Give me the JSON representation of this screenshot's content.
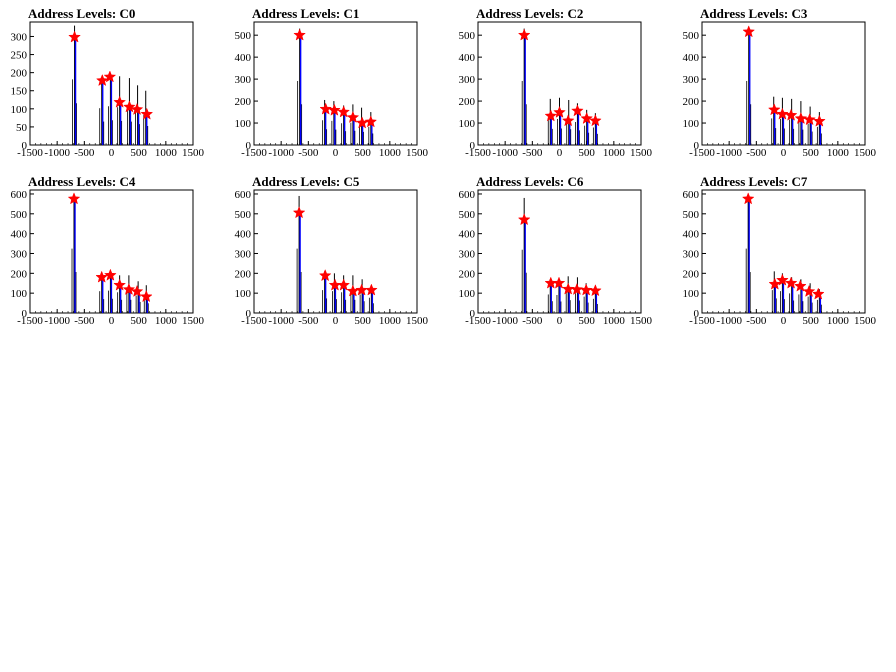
{
  "chart_data": [
    {
      "type": "bar",
      "title": "Address Levels: C0",
      "xlim": [
        -1500,
        1500
      ],
      "ylim": [
        0,
        340
      ],
      "xticks": [
        "-1500",
        "-1000",
        "-500",
        "0",
        "500",
        "1000",
        "1500"
      ],
      "yticks": [
        "0",
        "50",
        "100",
        "150",
        "200",
        "250",
        "300"
      ],
      "ytick_values": [
        0,
        50,
        100,
        150,
        200,
        250,
        300
      ],
      "hist_peaks": [
        {
          "x": -680,
          "y": 330,
          "blue": 300
        },
        {
          "x": -180,
          "y": 185,
          "blue": 175
        },
        {
          "x": -20,
          "y": 195,
          "blue": 185
        },
        {
          "x": 150,
          "y": 190,
          "blue": 120
        },
        {
          "x": 330,
          "y": 185,
          "blue": 110
        },
        {
          "x": 480,
          "y": 165,
          "blue": 100
        },
        {
          "x": 630,
          "y": 150,
          "blue": 90
        }
      ],
      "peak_markers": [
        {
          "x": -680,
          "y": 298
        },
        {
          "x": -170,
          "y": 178
        },
        {
          "x": -30,
          "y": 188
        },
        {
          "x": 150,
          "y": 118
        },
        {
          "x": 330,
          "y": 105
        },
        {
          "x": 470,
          "y": 98
        },
        {
          "x": 650,
          "y": 85
        }
      ]
    },
    {
      "type": "bar",
      "title": "Address Levels: C1",
      "xlim": [
        -1500,
        1500
      ],
      "ylim": [
        0,
        560
      ],
      "xticks": [
        "-1500",
        "-1000",
        "-500",
        "0",
        "500",
        "1000",
        "1500"
      ],
      "yticks": [
        "0",
        "100",
        "200",
        "300",
        "400",
        "500"
      ],
      "ytick_values": [
        0,
        100,
        200,
        300,
        400,
        500
      ],
      "hist_peaks": [
        {
          "x": -660,
          "y": 530,
          "blue": 500
        },
        {
          "x": -200,
          "y": 205,
          "blue": 170
        },
        {
          "x": -30,
          "y": 200,
          "blue": 160
        },
        {
          "x": 150,
          "y": 180,
          "blue": 150
        },
        {
          "x": 320,
          "y": 185,
          "blue": 120
        },
        {
          "x": 480,
          "y": 170,
          "blue": 100
        },
        {
          "x": 650,
          "y": 150,
          "blue": 100
        }
      ],
      "peak_markers": [
        {
          "x": -660,
          "y": 500
        },
        {
          "x": -180,
          "y": 163
        },
        {
          "x": -20,
          "y": 158
        },
        {
          "x": 150,
          "y": 150
        },
        {
          "x": 320,
          "y": 125
        },
        {
          "x": 490,
          "y": 100
        },
        {
          "x": 650,
          "y": 105
        }
      ]
    },
    {
      "type": "bar",
      "title": "Address Levels: C2",
      "xlim": [
        -1500,
        1500
      ],
      "ylim": [
        0,
        560
      ],
      "xticks": [
        "-1500",
        "-1000",
        "-500",
        "0",
        "500",
        "1000",
        "1500"
      ],
      "yticks": [
        "0",
        "100",
        "200",
        "300",
        "400",
        "500"
      ],
      "ytick_values": [
        0,
        100,
        200,
        300,
        400,
        500
      ],
      "hist_peaks": [
        {
          "x": -650,
          "y": 530,
          "blue": 505
        },
        {
          "x": -170,
          "y": 210,
          "blue": 135
        },
        {
          "x": 0,
          "y": 215,
          "blue": 150
        },
        {
          "x": 170,
          "y": 205,
          "blue": 110
        },
        {
          "x": 330,
          "y": 190,
          "blue": 155
        },
        {
          "x": 500,
          "y": 160,
          "blue": 120
        },
        {
          "x": 660,
          "y": 145,
          "blue": 110
        }
      ],
      "peak_markers": [
        {
          "x": -650,
          "y": 500
        },
        {
          "x": -160,
          "y": 132
        },
        {
          "x": 0,
          "y": 148
        },
        {
          "x": 160,
          "y": 110
        },
        {
          "x": 330,
          "y": 155
        },
        {
          "x": 500,
          "y": 120
        },
        {
          "x": 660,
          "y": 110
        }
      ]
    },
    {
      "type": "bar",
      "title": "Address Levels: C3",
      "xlim": [
        -1500,
        1500
      ],
      "ylim": [
        0,
        560
      ],
      "xticks": [
        "-1500",
        "-1000",
        "-500",
        "0",
        "500",
        "1000",
        "1500"
      ],
      "yticks": [
        "0",
        "100",
        "200",
        "300",
        "400",
        "500"
      ],
      "ytick_values": [
        0,
        100,
        200,
        300,
        400,
        500
      ],
      "hist_peaks": [
        {
          "x": -640,
          "y": 530,
          "blue": 515
        },
        {
          "x": -180,
          "y": 220,
          "blue": 160
        },
        {
          "x": -20,
          "y": 215,
          "blue": 145
        },
        {
          "x": 150,
          "y": 210,
          "blue": 135
        },
        {
          "x": 320,
          "y": 200,
          "blue": 120
        },
        {
          "x": 490,
          "y": 175,
          "blue": 110
        },
        {
          "x": 660,
          "y": 150,
          "blue": 105
        }
      ],
      "peak_markers": [
        {
          "x": -640,
          "y": 515
        },
        {
          "x": -170,
          "y": 160
        },
        {
          "x": -20,
          "y": 140
        },
        {
          "x": 140,
          "y": 135
        },
        {
          "x": 320,
          "y": 120
        },
        {
          "x": 480,
          "y": 115
        },
        {
          "x": 660,
          "y": 108
        }
      ]
    },
    {
      "type": "bar",
      "title": "Address Levels: C4",
      "xlim": [
        -1500,
        1500
      ],
      "ylim": [
        0,
        620
      ],
      "xticks": [
        "-1500",
        "-1000",
        "-500",
        "0",
        "500",
        "1000",
        "1500"
      ],
      "yticks": [
        "0",
        "100",
        "200",
        "300",
        "400",
        "500",
        "600"
      ],
      "ytick_values": [
        0,
        100,
        200,
        300,
        400,
        500,
        600
      ],
      "hist_peaks": [
        {
          "x": -690,
          "y": 590,
          "blue": 575
        },
        {
          "x": -180,
          "y": 200,
          "blue": 185
        },
        {
          "x": -20,
          "y": 205,
          "blue": 195
        },
        {
          "x": 150,
          "y": 190,
          "blue": 140
        },
        {
          "x": 320,
          "y": 190,
          "blue": 120
        },
        {
          "x": 490,
          "y": 160,
          "blue": 110
        },
        {
          "x": 640,
          "y": 140,
          "blue": 85
        }
      ],
      "peak_markers": [
        {
          "x": -690,
          "y": 575
        },
        {
          "x": -180,
          "y": 180
        },
        {
          "x": -20,
          "y": 190
        },
        {
          "x": 150,
          "y": 140
        },
        {
          "x": 320,
          "y": 118
        },
        {
          "x": 470,
          "y": 108
        },
        {
          "x": 640,
          "y": 82
        }
      ]
    },
    {
      "type": "bar",
      "title": "Address Levels: C5",
      "xlim": [
        -1500,
        1500
      ],
      "ylim": [
        0,
        620
      ],
      "xticks": [
        "-1500",
        "-1000",
        "-500",
        "0",
        "500",
        "1000",
        "1500"
      ],
      "yticks": [
        "0",
        "100",
        "200",
        "300",
        "400",
        "500",
        "600"
      ],
      "ytick_values": [
        0,
        100,
        200,
        300,
        400,
        500,
        600
      ],
      "hist_peaks": [
        {
          "x": -670,
          "y": 590,
          "blue": 510
        },
        {
          "x": -200,
          "y": 210,
          "blue": 190
        },
        {
          "x": -20,
          "y": 200,
          "blue": 145
        },
        {
          "x": 150,
          "y": 190,
          "blue": 140
        },
        {
          "x": 320,
          "y": 190,
          "blue": 110
        },
        {
          "x": 490,
          "y": 170,
          "blue": 115
        },
        {
          "x": 660,
          "y": 140,
          "blue": 115
        }
      ],
      "peak_markers": [
        {
          "x": -670,
          "y": 505
        },
        {
          "x": -190,
          "y": 188
        },
        {
          "x": -10,
          "y": 140
        },
        {
          "x": 150,
          "y": 140
        },
        {
          "x": 320,
          "y": 110
        },
        {
          "x": 480,
          "y": 115
        },
        {
          "x": 660,
          "y": 115
        }
      ]
    },
    {
      "type": "bar",
      "title": "Address Levels: C6",
      "xlim": [
        -1500,
        1500
      ],
      "ylim": [
        0,
        620
      ],
      "xticks": [
        "-1500",
        "-1000",
        "-500",
        "0",
        "500",
        "1000",
        "1500"
      ],
      "yticks": [
        "0",
        "100",
        "200",
        "300",
        "400",
        "500",
        "600"
      ],
      "ytick_values": [
        0,
        100,
        200,
        300,
        400,
        500,
        600
      ],
      "hist_peaks": [
        {
          "x": -650,
          "y": 580,
          "blue": 480
        },
        {
          "x": -170,
          "y": 170,
          "blue": 150
        },
        {
          "x": -10,
          "y": 165,
          "blue": 145
        },
        {
          "x": 160,
          "y": 185,
          "blue": 120
        },
        {
          "x": 330,
          "y": 180,
          "blue": 120
        },
        {
          "x": 490,
          "y": 150,
          "blue": 115
        },
        {
          "x": 660,
          "y": 130,
          "blue": 110
        }
      ],
      "peak_markers": [
        {
          "x": -650,
          "y": 470
        },
        {
          "x": -160,
          "y": 150
        },
        {
          "x": -10,
          "y": 150
        },
        {
          "x": 160,
          "y": 120
        },
        {
          "x": 320,
          "y": 118
        },
        {
          "x": 490,
          "y": 115
        },
        {
          "x": 660,
          "y": 112
        }
      ]
    },
    {
      "type": "bar",
      "title": "Address Levels: C7",
      "xlim": [
        -1500,
        1500
      ],
      "ylim": [
        0,
        620
      ],
      "xticks": [
        "-1500",
        "-1000",
        "-500",
        "0",
        "500",
        "1000",
        "1500"
      ],
      "yticks": [
        "0",
        "100",
        "200",
        "300",
        "400",
        "500",
        "600"
      ],
      "ytick_values": [
        0,
        100,
        200,
        300,
        400,
        500,
        600
      ],
      "hist_peaks": [
        {
          "x": -650,
          "y": 590,
          "blue": 575
        },
        {
          "x": -170,
          "y": 210,
          "blue": 145
        },
        {
          "x": -20,
          "y": 200,
          "blue": 165
        },
        {
          "x": 150,
          "y": 180,
          "blue": 150
        },
        {
          "x": 320,
          "y": 170,
          "blue": 135
        },
        {
          "x": 490,
          "y": 150,
          "blue": 110
        },
        {
          "x": 660,
          "y": 120,
          "blue": 95
        }
      ],
      "peak_markers": [
        {
          "x": -650,
          "y": 575
        },
        {
          "x": -160,
          "y": 145
        },
        {
          "x": -20,
          "y": 165
        },
        {
          "x": 140,
          "y": 150
        },
        {
          "x": 310,
          "y": 135
        },
        {
          "x": 470,
          "y": 108
        },
        {
          "x": 640,
          "y": 95
        }
      ]
    }
  ],
  "colors": {
    "histogram": "#000000",
    "fit": "#0000ff",
    "marker": "#ff0000",
    "frame": "#000000",
    "background": "#ffffff"
  }
}
